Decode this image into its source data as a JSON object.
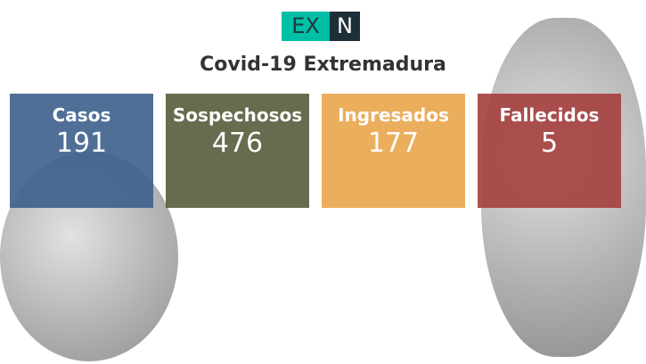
{
  "logo": {
    "left": "EX",
    "right": "N"
  },
  "title": "Covid-19 Extremadura",
  "cards": [
    {
      "label": "Casos",
      "value": "191",
      "color": "#4d6b8e"
    },
    {
      "label": "Sospechosos",
      "value": "476",
      "color": "#5d6243"
    },
    {
      "label": "Ingresados",
      "value": "177",
      "color": "#e6a955"
    },
    {
      "label": "Fallecidos",
      "value": "5",
      "color": "#a64b4b"
    }
  ]
}
